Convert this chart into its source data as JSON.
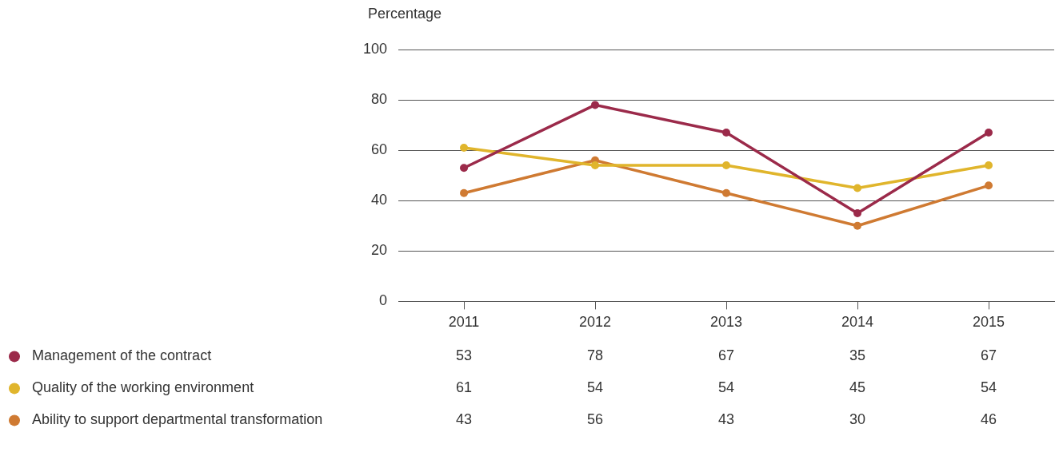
{
  "chart_data": {
    "type": "line",
    "ylabel": "Percentage",
    "categories": [
      "2011",
      "2012",
      "2013",
      "2014",
      "2015"
    ],
    "series": [
      {
        "name": "Management of the contract",
        "color": "#9b2a4a",
        "values": [
          53,
          78,
          67,
          35,
          67
        ]
      },
      {
        "name": "Quality of the working environment",
        "color": "#e0b52c",
        "values": [
          61,
          54,
          54,
          45,
          54
        ]
      },
      {
        "name": "Ability to support departmental transformation",
        "color": "#cf7a32",
        "values": [
          43,
          56,
          43,
          30,
          46
        ]
      }
    ],
    "ylim": [
      0,
      100
    ],
    "yticks": [
      0,
      20,
      40,
      60,
      80,
      100
    ],
    "grid": "y",
    "legend": "bottom",
    "marker": "circle",
    "line_style": "solid",
    "data_labels": true
  }
}
